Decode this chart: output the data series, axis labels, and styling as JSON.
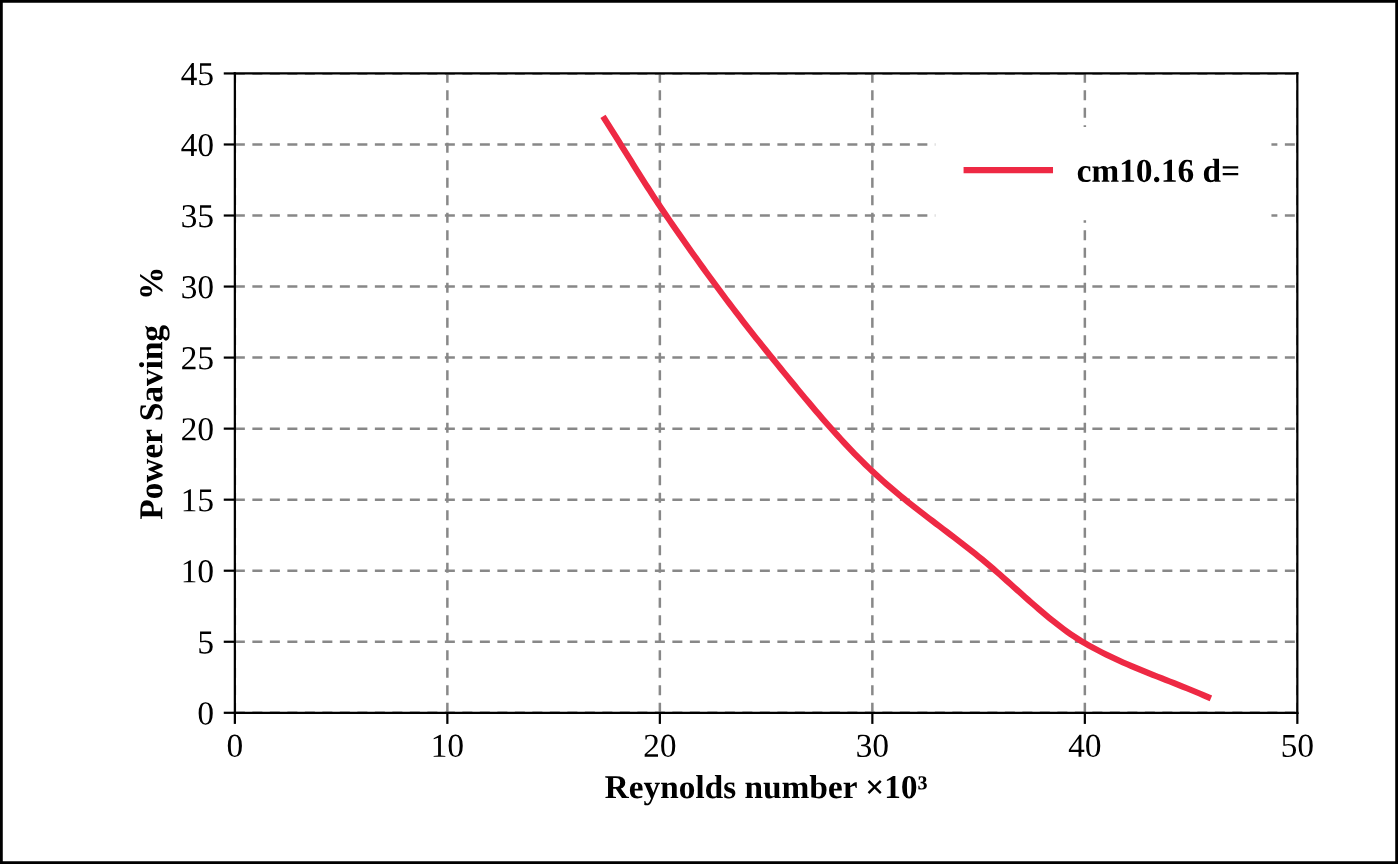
{
  "chart_data": {
    "type": "line",
    "xlabel": "Reynolds number ×10³",
    "ylabel": "Power Saving   %",
    "series": [
      {
        "name": "cm10.16 d=",
        "color": "#ee2944",
        "x": [
          17.4,
          20.3,
          25,
          30,
          35,
          40,
          45.8
        ],
        "values": [
          41.8,
          35,
          25.5,
          17,
          11,
          4.9,
          1.1
        ]
      }
    ],
    "xlim": [
      0,
      50
    ],
    "xticks": [
      0,
      10,
      20,
      30,
      40,
      50
    ],
    "ylim": [
      0,
      45
    ],
    "yticks": [
      0,
      5,
      10,
      15,
      20,
      25,
      30,
      35,
      40,
      45
    ],
    "grid": true,
    "legend": "top right",
    "marker": "none",
    "line_style": "solid"
  }
}
